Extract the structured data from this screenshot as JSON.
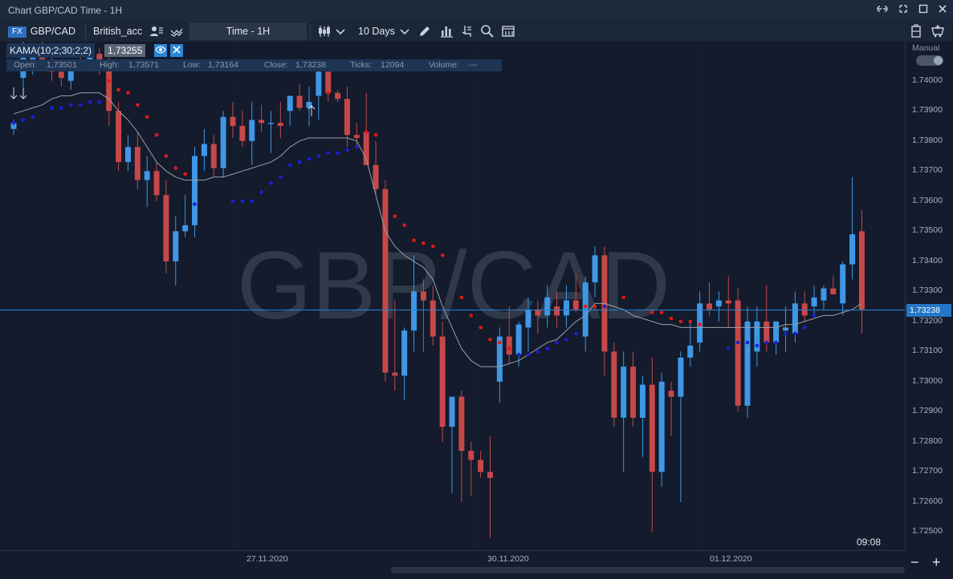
{
  "window": {
    "title": "Chart GBP/CAD Time - 1H",
    "controls": [
      "link-icon",
      "restore-icon",
      "maximize-icon",
      "close-icon"
    ]
  },
  "toolbar": {
    "symbol_badge": "FX",
    "symbol": "GBP/CAD",
    "account": "British_acc",
    "timeframe": "Time - 1H",
    "range": "10 Days",
    "icons": [
      "user-list-icon",
      "indicator-icon",
      "candles-icon",
      "chevron-down-icon",
      "draw-pencil-icon",
      "bars-icon",
      "pointer-icon",
      "search-icon",
      "screenshot-icon",
      "clipboard-icon",
      "basket-icon"
    ]
  },
  "indicator": {
    "label": "KAMA(10;2;30;2;2)",
    "value": "1,73255"
  },
  "ohlc": {
    "open_label": "Open:",
    "open": "1,73501",
    "high_label": "High:",
    "high": "1,73571",
    "low_label": "Low:",
    "low": "1,73164",
    "close_label": "Close:",
    "close": "1,73238",
    "ticks_label": "Ticks:",
    "ticks": "12094",
    "volume_label": "Volume:",
    "volume": "---"
  },
  "right_panel": {
    "mode_label": "Manual",
    "current_price": "1,73238"
  },
  "watermark": "GBP/CAD",
  "clock": "09:08",
  "colors": {
    "bull": "#3f97e6",
    "bear": "#c74848",
    "kama_line": "#9aa0a8",
    "dot_up": "#1820d8",
    "dot_down": "#e01818",
    "price_line": "#2a86d6"
  },
  "chart_data": {
    "type": "candlestick",
    "y_axis_ticks": [
      "1.74000",
      "1.73900",
      "1.73800",
      "1.73700",
      "1.73600",
      "1.73500",
      "1.73400",
      "1.73300",
      "1.73200",
      "1.73100",
      "1.73000",
      "1.72900",
      "1.72800",
      "1.72700",
      "1.72600",
      "1.72500"
    ],
    "x_axis_labels": [
      "27.11.2020",
      "30.11.2020",
      "01.12.2020"
    ],
    "ylim": [
      1.7244,
      1.7413
    ],
    "candles": [
      {
        "o": 1.7384,
        "h": 1.7387,
        "l": 1.7382,
        "c": 1.7386
      },
      {
        "o": 1.7401,
        "h": 1.7416,
        "l": 1.7398,
        "c": 1.7411
      },
      {
        "o": 1.7405,
        "h": 1.741,
        "l": 1.7402,
        "c": 1.7409
      },
      {
        "o": 1.741,
        "h": 1.7414,
        "l": 1.7404,
        "c": 1.7406
      },
      {
        "o": 1.7406,
        "h": 1.741,
        "l": 1.74,
        "c": 1.7403
      },
      {
        "o": 1.7403,
        "h": 1.7406,
        "l": 1.7398,
        "c": 1.7401
      },
      {
        "o": 1.74,
        "h": 1.7405,
        "l": 1.7397,
        "c": 1.7404
      },
      {
        "o": 1.7405,
        "h": 1.7408,
        "l": 1.7403,
        "c": 1.7404
      },
      {
        "o": 1.7404,
        "h": 1.741,
        "l": 1.7403,
        "c": 1.7409
      },
      {
        "o": 1.7409,
        "h": 1.7411,
        "l": 1.7402,
        "c": 1.7405
      },
      {
        "o": 1.7405,
        "h": 1.7408,
        "l": 1.7385,
        "c": 1.739
      },
      {
        "o": 1.739,
        "h": 1.7393,
        "l": 1.737,
        "c": 1.7373
      },
      {
        "o": 1.7373,
        "h": 1.7382,
        "l": 1.737,
        "c": 1.7378
      },
      {
        "o": 1.7378,
        "h": 1.7383,
        "l": 1.7364,
        "c": 1.7367
      },
      {
        "o": 1.7367,
        "h": 1.7375,
        "l": 1.7358,
        "c": 1.737
      },
      {
        "o": 1.737,
        "h": 1.7373,
        "l": 1.736,
        "c": 1.7362
      },
      {
        "o": 1.7362,
        "h": 1.7367,
        "l": 1.7336,
        "c": 1.734
      },
      {
        "o": 1.734,
        "h": 1.7355,
        "l": 1.7332,
        "c": 1.735
      },
      {
        "o": 1.735,
        "h": 1.7362,
        "l": 1.7348,
        "c": 1.7352
      },
      {
        "o": 1.7352,
        "h": 1.7378,
        "l": 1.7348,
        "c": 1.7375
      },
      {
        "o": 1.7375,
        "h": 1.7384,
        "l": 1.737,
        "c": 1.7379
      },
      {
        "o": 1.7379,
        "h": 1.7382,
        "l": 1.7368,
        "c": 1.7371
      },
      {
        "o": 1.7371,
        "h": 1.739,
        "l": 1.7368,
        "c": 1.7388
      },
      {
        "o": 1.7388,
        "h": 1.7393,
        "l": 1.7381,
        "c": 1.7385
      },
      {
        "o": 1.7385,
        "h": 1.739,
        "l": 1.7378,
        "c": 1.738
      },
      {
        "o": 1.738,
        "h": 1.7393,
        "l": 1.7372,
        "c": 1.7387
      },
      {
        "o": 1.7387,
        "h": 1.7392,
        "l": 1.7383,
        "c": 1.7386
      },
      {
        "o": 1.7386,
        "h": 1.739,
        "l": 1.7376,
        "c": 1.7386
      },
      {
        "o": 1.7386,
        "h": 1.7393,
        "l": 1.7381,
        "c": 1.7385
      },
      {
        "o": 1.739,
        "h": 1.7395,
        "l": 1.7385,
        "c": 1.7395
      },
      {
        "o": 1.7395,
        "h": 1.7399,
        "l": 1.739,
        "c": 1.7391
      },
      {
        "o": 1.7391,
        "h": 1.7398,
        "l": 1.7385,
        "c": 1.7393
      },
      {
        "o": 1.7395,
        "h": 1.7405,
        "l": 1.7387,
        "c": 1.7403
      },
      {
        "o": 1.7403,
        "h": 1.7406,
        "l": 1.7393,
        "c": 1.7396
      },
      {
        "o": 1.7396,
        "h": 1.7397,
        "l": 1.7393,
        "c": 1.7394
      },
      {
        "o": 1.7394,
        "h": 1.7398,
        "l": 1.7378,
        "c": 1.7382
      },
      {
        "o": 1.7382,
        "h": 1.7386,
        "l": 1.7378,
        "c": 1.7381
      },
      {
        "o": 1.7383,
        "h": 1.7396,
        "l": 1.7372,
        "c": 1.7372
      },
      {
        "o": 1.7372,
        "h": 1.738,
        "l": 1.7362,
        "c": 1.7364
      },
      {
        "o": 1.7364,
        "h": 1.7367,
        "l": 1.73,
        "c": 1.7303
      },
      {
        "o": 1.7303,
        "h": 1.7327,
        "l": 1.7297,
        "c": 1.7302
      },
      {
        "o": 1.7302,
        "h": 1.7318,
        "l": 1.7294,
        "c": 1.7317
      },
      {
        "o": 1.7317,
        "h": 1.7342,
        "l": 1.731,
        "c": 1.733
      },
      {
        "o": 1.733,
        "h": 1.7334,
        "l": 1.731,
        "c": 1.7327
      },
      {
        "o": 1.7327,
        "h": 1.7332,
        "l": 1.7312,
        "c": 1.7315
      },
      {
        "o": 1.7315,
        "h": 1.732,
        "l": 1.728,
        "c": 1.7285
      },
      {
        "o": 1.7285,
        "h": 1.7295,
        "l": 1.7263,
        "c": 1.7295
      },
      {
        "o": 1.7295,
        "h": 1.7297,
        "l": 1.726,
        "c": 1.7277
      },
      {
        "o": 1.7277,
        "h": 1.728,
        "l": 1.7262,
        "c": 1.7274
      },
      {
        "o": 1.7274,
        "h": 1.7277,
        "l": 1.7268,
        "c": 1.727
      },
      {
        "o": 1.727,
        "h": 1.7282,
        "l": 1.7248,
        "c": 1.7268
      },
      {
        "o": 1.73,
        "h": 1.7318,
        "l": 1.7293,
        "c": 1.7315
      },
      {
        "o": 1.7315,
        "h": 1.7325,
        "l": 1.7306,
        "c": 1.7309
      },
      {
        "o": 1.7309,
        "h": 1.732,
        "l": 1.7305,
        "c": 1.7319
      },
      {
        "o": 1.7318,
        "h": 1.7328,
        "l": 1.731,
        "c": 1.7324
      },
      {
        "o": 1.7324,
        "h": 1.7327,
        "l": 1.7316,
        "c": 1.7322
      },
      {
        "o": 1.7322,
        "h": 1.7332,
        "l": 1.7318,
        "c": 1.7328
      },
      {
        "o": 1.7325,
        "h": 1.733,
        "l": 1.7318,
        "c": 1.7322
      },
      {
        "o": 1.7322,
        "h": 1.7332,
        "l": 1.7318,
        "c": 1.7327
      },
      {
        "o": 1.7327,
        "h": 1.7336,
        "l": 1.7323,
        "c": 1.7324
      },
      {
        "o": 1.7315,
        "h": 1.7335,
        "l": 1.731,
        "c": 1.7333
      },
      {
        "o": 1.7333,
        "h": 1.7345,
        "l": 1.7328,
        "c": 1.7342
      },
      {
        "o": 1.7342,
        "h": 1.7345,
        "l": 1.7302,
        "c": 1.731
      },
      {
        "o": 1.731,
        "h": 1.7313,
        "l": 1.7285,
        "c": 1.7288
      },
      {
        "o": 1.7288,
        "h": 1.731,
        "l": 1.727,
        "c": 1.7305
      },
      {
        "o": 1.7305,
        "h": 1.731,
        "l": 1.7285,
        "c": 1.7288
      },
      {
        "o": 1.7288,
        "h": 1.7302,
        "l": 1.7275,
        "c": 1.7299
      },
      {
        "o": 1.7299,
        "h": 1.7308,
        "l": 1.725,
        "c": 1.727
      },
      {
        "o": 1.727,
        "h": 1.7303,
        "l": 1.7265,
        "c": 1.73
      },
      {
        "o": 1.7297,
        "h": 1.73,
        "l": 1.7282,
        "c": 1.7295
      },
      {
        "o": 1.7295,
        "h": 1.731,
        "l": 1.726,
        "c": 1.7308
      },
      {
        "o": 1.7308,
        "h": 1.732,
        "l": 1.7305,
        "c": 1.7312
      },
      {
        "o": 1.7313,
        "h": 1.733,
        "l": 1.731,
        "c": 1.7326
      },
      {
        "o": 1.7326,
        "h": 1.7333,
        "l": 1.7322,
        "c": 1.7324
      },
      {
        "o": 1.7325,
        "h": 1.733,
        "l": 1.732,
        "c": 1.7327
      },
      {
        "o": 1.7327,
        "h": 1.7335,
        "l": 1.7318,
        "c": 1.7326
      },
      {
        "o": 1.7327,
        "h": 1.7331,
        "l": 1.729,
        "c": 1.7292
      },
      {
        "o": 1.7292,
        "h": 1.7325,
        "l": 1.7288,
        "c": 1.732
      },
      {
        "o": 1.731,
        "h": 1.7325,
        "l": 1.7305,
        "c": 1.732
      },
      {
        "o": 1.732,
        "h": 1.7332,
        "l": 1.731,
        "c": 1.7313
      },
      {
        "o": 1.7313,
        "h": 1.732,
        "l": 1.7309,
        "c": 1.732
      },
      {
        "o": 1.7317,
        "h": 1.7325,
        "l": 1.731,
        "c": 1.7318
      },
      {
        "o": 1.7316,
        "h": 1.733,
        "l": 1.7313,
        "c": 1.7326
      },
      {
        "o": 1.7326,
        "h": 1.733,
        "l": 1.732,
        "c": 1.7322
      },
      {
        "o": 1.7325,
        "h": 1.7332,
        "l": 1.7322,
        "c": 1.7328
      },
      {
        "o": 1.7327,
        "h": 1.7332,
        "l": 1.7324,
        "c": 1.7331
      },
      {
        "o": 1.7331,
        "h": 1.7335,
        "l": 1.7329,
        "c": 1.7329
      },
      {
        "o": 1.7326,
        "h": 1.734,
        "l": 1.7322,
        "c": 1.7339
      },
      {
        "o": 1.7339,
        "h": 1.7368,
        "l": 1.7334,
        "c": 1.7349
      },
      {
        "o": 1.735,
        "h": 1.7357,
        "l": 1.7316,
        "c": 1.7324
      }
    ],
    "kama": [
      1.7389,
      1.739,
      1.7391,
      1.7392,
      1.7394,
      1.7395,
      1.7395,
      1.7396,
      1.7396,
      1.7396,
      1.7394,
      1.739,
      1.7387,
      1.7383,
      1.7378,
      1.7373,
      1.737,
      1.7368,
      1.7367,
      1.7367,
      1.7367,
      1.7368,
      1.7368,
      1.7369,
      1.737,
      1.7371,
      1.7372,
      1.7373,
      1.7375,
      1.7378,
      1.738,
      1.7381,
      1.7381,
      1.7381,
      1.7381,
      1.7381,
      1.738,
      1.7374,
      1.7362,
      1.735,
      1.7345,
      1.7342,
      1.734,
      1.7338,
      1.7334,
      1.7325,
      1.7318,
      1.7311,
      1.7307,
      1.7305,
      1.7305,
      1.7305,
      1.7306,
      1.7307,
      1.7309,
      1.7311,
      1.7313,
      1.7314,
      1.7317,
      1.732,
      1.7322,
      1.7326,
      1.7326,
      1.7325,
      1.7324,
      1.7322,
      1.7321,
      1.732,
      1.7319,
      1.7319,
      1.7318,
      1.7318,
      1.7318,
      1.7318,
      1.7318,
      1.7318,
      1.7318,
      1.7318,
      1.7318,
      1.7318,
      1.7318,
      1.7319,
      1.7319,
      1.732,
      1.7321,
      1.7322,
      1.7322,
      1.7323,
      1.7324,
      1.7326
    ],
    "signal_dots_red": [
      [
        10,
        1.74
      ],
      [
        11,
        1.7397
      ],
      [
        12,
        1.7396
      ],
      [
        13,
        1.7392
      ],
      [
        14,
        1.7388
      ],
      [
        15,
        1.7382
      ],
      [
        16,
        1.7375
      ],
      [
        17,
        1.7371
      ],
      [
        18,
        1.7369
      ],
      [
        33,
        1.7396
      ],
      [
        37,
        1.7383
      ],
      [
        38,
        1.7382
      ],
      [
        40,
        1.7355
      ],
      [
        41,
        1.7352
      ],
      [
        42,
        1.7347
      ],
      [
        43,
        1.7346
      ],
      [
        44,
        1.7345
      ],
      [
        45,
        1.7342
      ],
      [
        47,
        1.7328
      ],
      [
        48,
        1.7322
      ],
      [
        49,
        1.7318
      ],
      [
        50,
        1.7314
      ],
      [
        51,
        1.7313
      ],
      [
        52,
        1.7311
      ],
      [
        60,
        1.7325
      ],
      [
        61,
        1.7325
      ],
      [
        64,
        1.7328
      ],
      [
        67,
        1.7323
      ],
      [
        68,
        1.7323
      ],
      [
        69,
        1.7321
      ],
      [
        70,
        1.732
      ],
      [
        71,
        1.732
      ],
      [
        72,
        1.7319
      ]
    ],
    "signal_dots_blue": [
      [
        0,
        1.7386
      ],
      [
        1,
        1.7387
      ],
      [
        2,
        1.7388
      ],
      [
        4,
        1.7391
      ],
      [
        5,
        1.7391
      ],
      [
        6,
        1.7392
      ],
      [
        7,
        1.7392
      ],
      [
        8,
        1.7393
      ],
      [
        9,
        1.7393
      ],
      [
        23,
        1.736
      ],
      [
        24,
        1.736
      ],
      [
        25,
        1.736
      ],
      [
        26,
        1.7363
      ],
      [
        27,
        1.7366
      ],
      [
        28,
        1.7368
      ],
      [
        29,
        1.7372
      ],
      [
        30,
        1.7373
      ],
      [
        31,
        1.7374
      ],
      [
        32,
        1.7375
      ],
      [
        33,
        1.7376
      ],
      [
        34,
        1.7376
      ],
      [
        35,
        1.7377
      ],
      [
        36,
        1.7378
      ],
      [
        19,
        1.7359
      ],
      [
        53,
        1.7309
      ],
      [
        54,
        1.7309
      ],
      [
        55,
        1.731
      ],
      [
        56,
        1.7311
      ],
      [
        57,
        1.7313
      ],
      [
        58,
        1.7314
      ],
      [
        59,
        1.7316
      ],
      [
        62,
        1.7325
      ],
      [
        75,
        1.7311
      ],
      [
        76,
        1.7313
      ],
      [
        77,
        1.7313
      ],
      [
        78,
        1.7312
      ],
      [
        79,
        1.7313
      ],
      [
        80,
        1.7313
      ],
      [
        81,
        1.7316
      ],
      [
        82,
        1.7316
      ],
      [
        83,
        1.7318
      ],
      [
        84,
        1.7322
      ]
    ]
  }
}
